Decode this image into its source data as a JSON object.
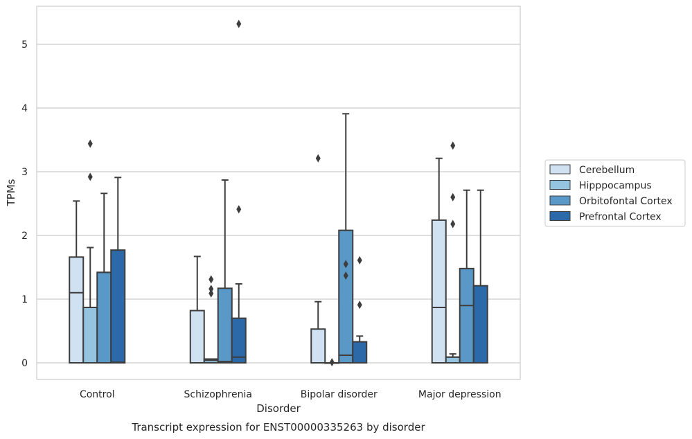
{
  "chart_data": {
    "type": "box",
    "caption": "Transcript expression for ENST00000335263 by disorder",
    "xlabel": "Disorder",
    "ylabel": "TPMs",
    "ylim": [
      -0.26,
      5.6
    ],
    "yticks": [
      0,
      1,
      2,
      3,
      4,
      5
    ],
    "grid": "horizontal",
    "legend_placement": "right",
    "categories": [
      "Control",
      "Schizophrenia",
      "Bipolar disorder",
      "Major depression"
    ],
    "series": [
      {
        "name": "Cerebellum",
        "color": "#d0e1f2",
        "boxes": [
          {
            "whislo": 0,
            "q1": 0,
            "med": 1.1,
            "q3": 1.66,
            "whishi": 2.54,
            "fliers": []
          },
          {
            "whislo": 0,
            "q1": 0,
            "med": 0,
            "q3": 0.82,
            "whishi": 1.67,
            "fliers": []
          },
          {
            "whislo": 0,
            "q1": 0,
            "med": 0,
            "q3": 0.53,
            "whishi": 0.96,
            "fliers": [
              3.21
            ]
          },
          {
            "whislo": 0,
            "q1": 0,
            "med": 0.87,
            "q3": 2.24,
            "whishi": 3.21,
            "fliers": []
          }
        ]
      },
      {
        "name": "Hipppocampus",
        "color": "#94c4df",
        "boxes": [
          {
            "whislo": 0,
            "q1": 0,
            "med": 0.87,
            "q3": 0.87,
            "whishi": 1.81,
            "fliers": [
              2.92,
              3.44
            ]
          },
          {
            "whislo": 0,
            "q1": 0,
            "med": 0.04,
            "q3": 0.06,
            "whishi": 0.06,
            "fliers": [
              1.09,
              1.16,
              1.31
            ]
          },
          {
            "whislo": 0,
            "q1": 0,
            "med": 0,
            "q3": 0,
            "whishi": 0,
            "fliers": [
              0.01
            ]
          },
          {
            "whislo": 0,
            "q1": 0,
            "med": 0.09,
            "q3": 0.09,
            "whishi": 0.14,
            "fliers": [
              2.18,
              2.6,
              3.41
            ]
          }
        ]
      },
      {
        "name": "Orbitofontal Cortex",
        "color": "#5a98c8",
        "boxes": [
          {
            "whislo": 0,
            "q1": 0,
            "med": 1.42,
            "q3": 1.42,
            "whishi": 2.66,
            "fliers": []
          },
          {
            "whislo": 0,
            "q1": 0,
            "med": 0.02,
            "q3": 1.17,
            "whishi": 2.87,
            "fliers": []
          },
          {
            "whislo": 0,
            "q1": 0,
            "med": 0.12,
            "q3": 2.08,
            "whishi": 3.91,
            "fliers": [
              1.37,
              1.55
            ]
          },
          {
            "whislo": 0,
            "q1": 0,
            "med": 0.9,
            "q3": 1.48,
            "whishi": 2.71,
            "fliers": []
          }
        ]
      },
      {
        "name": "Prefrontal Cortex",
        "color": "#2b69a8",
        "boxes": [
          {
            "whislo": 0,
            "q1": 0,
            "med": 0.01,
            "q3": 1.77,
            "whishi": 2.91,
            "fliers": []
          },
          {
            "whislo": 0,
            "q1": 0,
            "med": 0.09,
            "q3": 0.7,
            "whishi": 1.24,
            "fliers": [
              2.41,
              5.32
            ]
          },
          {
            "whislo": 0,
            "q1": 0,
            "med": 0,
            "q3": 0.33,
            "whishi": 0.42,
            "fliers": [
              0.91,
              1.61
            ]
          },
          {
            "whislo": 0,
            "q1": 0,
            "med": 0,
            "q3": 1.21,
            "whishi": 2.71,
            "fliers": []
          }
        ]
      }
    ]
  }
}
